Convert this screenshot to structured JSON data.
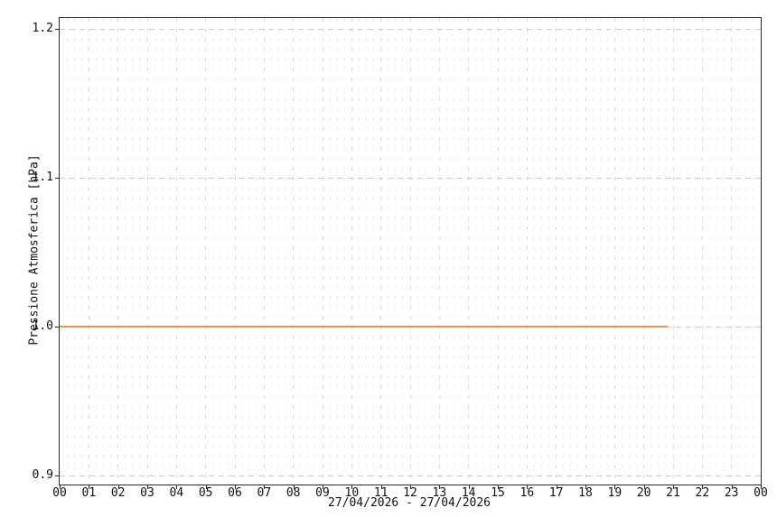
{
  "chart_data": {
    "type": "line",
    "title": "",
    "ylabel": "Pressione Atmosferica [hPa]",
    "xlabel": "27/04/2026 - 27/04/2026",
    "x_axis": {
      "unit": "hour of day",
      "range_hours": [
        0,
        24
      ],
      "major_step_hours": 1,
      "minor_step_hours": 0.25,
      "tick_labels": [
        "00",
        "01",
        "02",
        "03",
        "04",
        "05",
        "06",
        "07",
        "08",
        "09",
        "10",
        "11",
        "12",
        "13",
        "14",
        "15",
        "16",
        "17",
        "18",
        "19",
        "20",
        "21",
        "22",
        "23",
        "00"
      ]
    },
    "y_axis": {
      "unit": "hPa",
      "ylim": [
        0.894,
        1.207
      ],
      "ticks": [
        {
          "value": 1.2,
          "label": "1.2"
        },
        {
          "value": 1.1,
          "label": "1.1"
        },
        {
          "value": 1.0,
          "label": "1.0"
        },
        {
          "value": 0.9,
          "label": "0.9"
        }
      ]
    },
    "grid": {
      "horizontal_major": true,
      "vertical_major": true,
      "vertical_minor": true,
      "legend": "none"
    },
    "series": [
      {
        "name": "Pressione Atmosferica",
        "color": "#ef9445",
        "value_hpa": 1.0,
        "x_start_hour": 0,
        "x_end_hour": 20.8,
        "description": "flat line at 1.0 hPa from 00:00 until about 20:50, then no data"
      }
    ]
  },
  "colors": {
    "background": "#ffffff",
    "axis": "#2b2b2b",
    "text": "#111111",
    "grid_major_horizontal": "#cccccc",
    "grid_major_vertical": "#d7d7d7",
    "grid_minor_vertical": "#ececec",
    "series_orange": "#ef9445"
  }
}
